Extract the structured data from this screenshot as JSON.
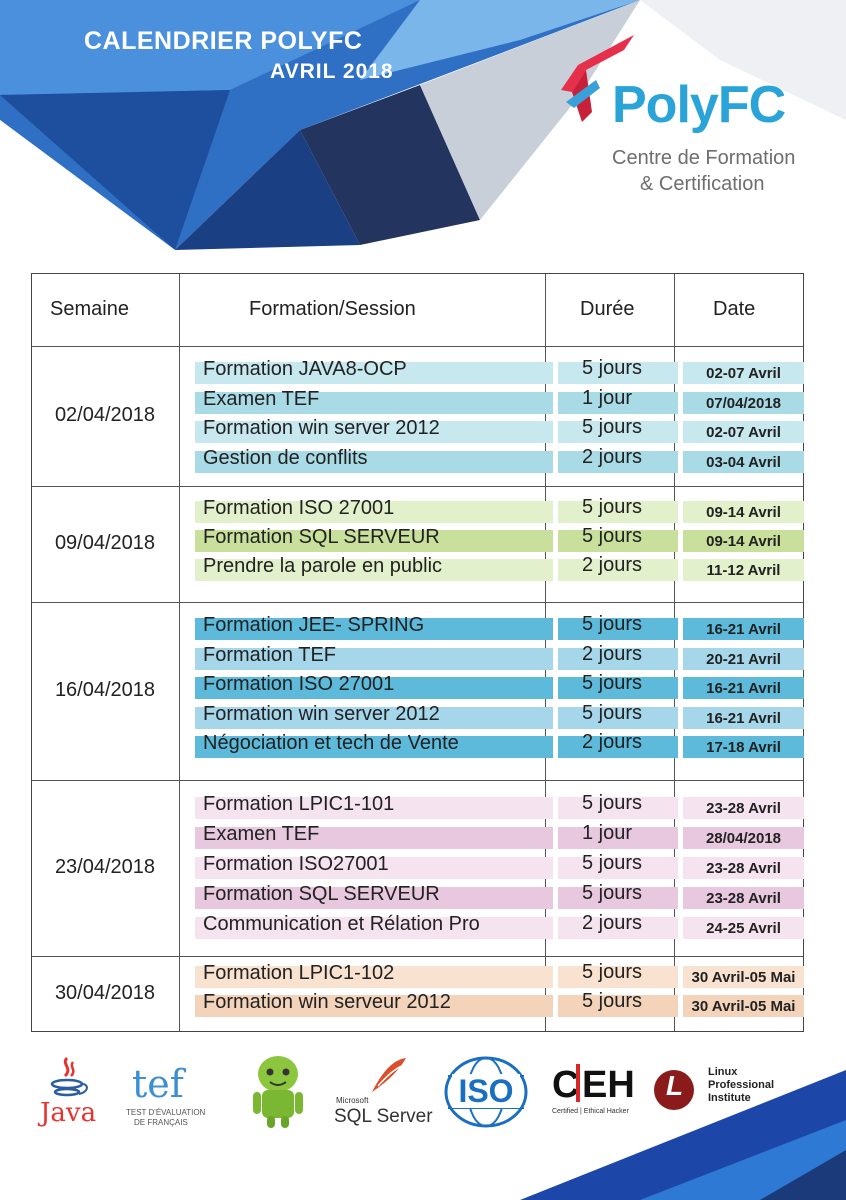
{
  "header": {
    "title": "CALENDRIER POLYFC",
    "subtitle": "AVRIL 2018"
  },
  "logo": {
    "word": "PolyFC",
    "line1": "Centre de Formation",
    "line2": "& Certification"
  },
  "table": {
    "columns": [
      "Semaine",
      "Formation/Session",
      "Durée",
      "Date"
    ],
    "weeks": [
      {
        "week": "02/04/2018",
        "rows": [
          {
            "formation": "Formation JAVA8-OCP",
            "duree": "5 jours",
            "date": "02-07 Avril",
            "color": "#c7e8ee"
          },
          {
            "formation": "Examen TEF",
            "duree": "1 jour",
            "date": "07/04/2018",
            "color": "#a9dbe6"
          },
          {
            "formation": "Formation win server 2012",
            "duree": "5 jours",
            "date": "02-07 Avril",
            "color": "#c7e8ee"
          },
          {
            "formation": "Gestion de conflits",
            "duree": "2 jours",
            "date": "03-04 Avril",
            "color": "#a9dbe6"
          }
        ]
      },
      {
        "week": "09/04/2018",
        "rows": [
          {
            "formation": "Formation ISO 27001",
            "duree": "5 jours",
            "date": "09-14 Avril",
            "color": "#e3f0cc"
          },
          {
            "formation": "Formation SQL SERVEUR",
            "duree": "5 jours",
            "date": "09-14 Avril",
            "color": "#c9df9c"
          },
          {
            "formation": "Prendre la parole en public",
            "duree": "2 jours",
            "date": "11-12 Avril",
            "color": "#e3f0cc"
          }
        ]
      },
      {
        "week": "16/04/2018",
        "rows": [
          {
            "formation": "Formation JEE- SPRING",
            "duree": "5 jours",
            "date": "16-21 Avril",
            "color": "#5dbadb"
          },
          {
            "formation": "Formation TEF",
            "duree": "2 jours",
            "date": "20-21 Avril",
            "color": "#a5d6ea"
          },
          {
            "formation": "Formation ISO 27001",
            "duree": "5 jours",
            "date": "16-21 Avril",
            "color": "#5dbadb"
          },
          {
            "formation": "Formation win server 2012",
            "duree": "5 jours",
            "date": "16-21 Avril",
            "color": "#a5d6ea"
          },
          {
            "formation": "Négociation et tech de Vente",
            "duree": "2 jours",
            "date": "17-18 Avril",
            "color": "#5dbadb"
          }
        ]
      },
      {
        "week": "23/04/2018",
        "rows": [
          {
            "formation": "Formation LPIC1-101",
            "duree": "5 jours",
            "date": "23-28 Avril",
            "color": "#f6e3f0"
          },
          {
            "formation": "Examen TEF",
            "duree": "1 jour",
            "date": "28/04/2018",
            "color": "#e8c8de"
          },
          {
            "formation": "Formation ISO27001",
            "duree": "5 jours",
            "date": "23-28 Avril",
            "color": "#f6e3f0"
          },
          {
            "formation": "Formation SQL SERVEUR",
            "duree": "5 jours",
            "date": "23-28 Avril",
            "color": "#e8c8de"
          },
          {
            "formation": "Communication et Rélation Pro",
            "duree": "2 jours",
            "date": "24-25 Avril",
            "color": "#f6e3f0"
          }
        ]
      },
      {
        "week": "30/04/2018",
        "rows": [
          {
            "formation": "Formation LPIC1-102",
            "duree": "5 jours",
            "date": "30 Avril-05 Mai",
            "color": "#fae2d0"
          },
          {
            "formation": "Formation win serveur 2012",
            "duree": "5 jours",
            "date": "30 Avril-05 Mai",
            "color": "#f3d4bb"
          }
        ]
      }
    ]
  },
  "partners": {
    "java": "Java",
    "tef_word": "tef",
    "tef_line1": "TEST D'ÉVALUATION",
    "tef_line2": "DE FRANÇAIS",
    "android": "android-robot",
    "sql_small": "Microsoft",
    "sql_big": "SQL Server",
    "iso": "ISO",
    "ceh_c": "C",
    "ceh_eh": "EH",
    "ceh_sub": "Certified | Ethical Hacker",
    "lpi_letter": "L",
    "lpi_line1": "Linux",
    "lpi_line2": "Professional",
    "lpi_line3": "Institute"
  }
}
